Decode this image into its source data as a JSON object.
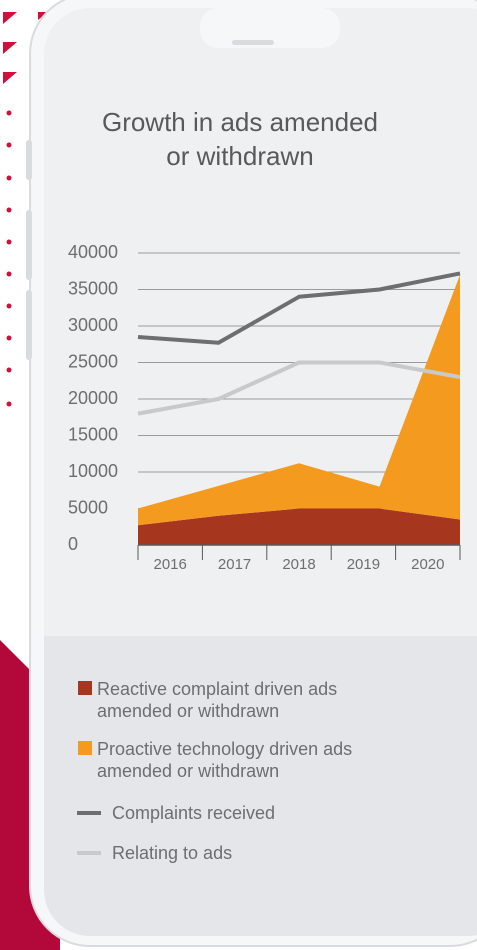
{
  "chart_data": {
    "type": "line",
    "title": "Growth in ads amended or withdrawn",
    "categories": [
      "2016",
      "2017",
      "2018",
      "2019",
      "2020"
    ],
    "stacked_areas": true,
    "series": [
      {
        "name": "Reactive complaint driven ads amended or withdrawn",
        "type": "area",
        "color": "#a6361d",
        "values": [
          2700,
          4000,
          5000,
          5000,
          3500
        ]
      },
      {
        "name": "Proactive technology driven ads amended or withdrawn",
        "type": "area",
        "color": "#f39a1f",
        "values": [
          2300,
          4100,
          6200,
          3000,
          33500
        ]
      },
      {
        "name": "Complaints received",
        "type": "line",
        "color": "#6d6e70",
        "values": [
          28500,
          27700,
          34000,
          35000,
          37200
        ]
      },
      {
        "name": "Relating to ads",
        "type": "line",
        "color": "#c8c9cb",
        "values": [
          18000,
          20000,
          25000,
          25000,
          23000
        ]
      }
    ],
    "ylim": [
      0,
      40000
    ],
    "yticks": [
      0,
      5000,
      10000,
      15000,
      20000,
      25000,
      30000,
      35000,
      40000
    ],
    "grid": true
  }
}
